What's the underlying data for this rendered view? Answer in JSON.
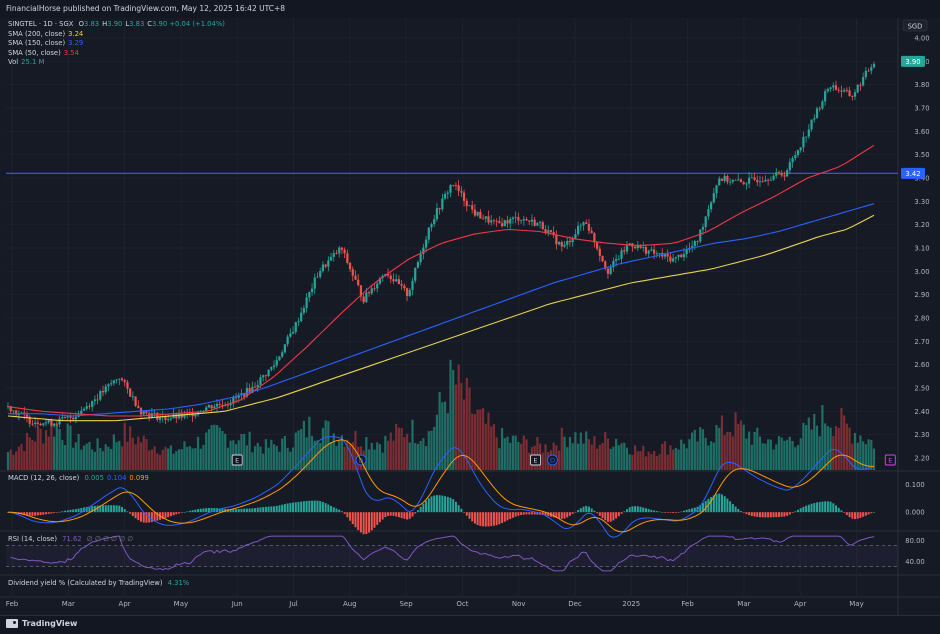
{
  "header": {
    "publish_line": "FinancialHorse published on TradingView.com, May 12, 2025 16:42 UTC+8"
  },
  "currency": "SGD",
  "main_legend": {
    "symbol": "SINGTEL · 1D · SGX",
    "ohlc": [
      {
        "k": "O",
        "v": "3.83"
      },
      {
        "k": "H",
        "v": "3.90"
      },
      {
        "k": "L",
        "v": "3.83"
      },
      {
        "k": "C",
        "v": "3.90"
      }
    ],
    "change": "+0.04 (+1.04%)",
    "indicators": [
      {
        "label": "SMA (200, close)",
        "value": "3.24",
        "color": "#e6d24c"
      },
      {
        "label": "SMA (150, close)",
        "value": "3.29",
        "color": "#2962ff"
      },
      {
        "label": "SMA (50, close)",
        "value": "3.54",
        "color": "#f23645"
      },
      {
        "label": "Vol",
        "value": "25.1 M",
        "color": "#26a69a"
      }
    ]
  },
  "macd_legend": {
    "label": "MACD (12, 26, close)",
    "values": [
      "0.005",
      "0.104",
      "0.099"
    ],
    "colors": [
      "#26a69a",
      "#2962ff",
      "#ff9800"
    ]
  },
  "rsi_legend": {
    "label": "RSI (14, close)",
    "value": "71.62",
    "extras": "∅ ∅ ∅ ∅ ∅ ∅"
  },
  "div_legend": {
    "label": "Dividend yield % (Calculated by TradingView)",
    "value": "4.31%"
  },
  "price_labels": {
    "last": "3.90",
    "level": "3.42"
  },
  "event_markers": [
    {
      "text": "E",
      "month_pos": 4.0,
      "color": "#d1d4dc"
    },
    {
      "text": "D",
      "month_pos": 6.2,
      "color": "#2962ff"
    },
    {
      "text": "E",
      "month_pos": 9.3,
      "color": "#d1d4dc"
    },
    {
      "text": "D",
      "month_pos": 9.6,
      "color": "#2962ff"
    },
    {
      "text": "E",
      "month_pos": 15.6,
      "color": "#e040fb"
    }
  ],
  "footer": {
    "brand": "TradingView"
  },
  "chart_data": {
    "type": "candlestick",
    "x_axis": {
      "labels": [
        "Feb",
        "Mar",
        "Apr",
        "May",
        "Jun",
        "Jul",
        "Aug",
        "Sep",
        "Oct",
        "Nov",
        "Dec",
        "2025",
        "Feb",
        "Mar",
        "Apr",
        "May"
      ]
    },
    "y_axis": {
      "ticks": [
        "4.00",
        "3.90",
        "3.80",
        "3.70",
        "3.60",
        "3.50",
        "3.40",
        "3.30",
        "3.20",
        "3.10",
        "3.00",
        "2.90",
        "2.80",
        "2.70",
        "2.60",
        "2.50",
        "2.40",
        "2.30",
        "2.20"
      ],
      "range": [
        2.2,
        4.0
      ]
    },
    "horizontal_line": 3.42,
    "price_closes": [
      2.42,
      2.36,
      2.35,
      2.38,
      2.46,
      2.55,
      2.4,
      2.37,
      2.38,
      2.42,
      2.44,
      2.5,
      2.6,
      2.78,
      3.0,
      3.1,
      2.88,
      3.0,
      2.9,
      3.2,
      3.38,
      3.25,
      3.2,
      3.23,
      3.2,
      3.1,
      3.22,
      3.0,
      3.12,
      3.08,
      3.05,
      3.12,
      3.4,
      3.38,
      3.4,
      3.42,
      3.6,
      3.8,
      3.75,
      3.9
    ],
    "price_high_low_range": [
      2.2,
      4.0
    ],
    "sma_200": [
      2.38,
      2.37,
      2.36,
      2.36,
      2.36,
      2.37,
      2.38,
      2.39,
      2.4,
      2.43,
      2.46,
      2.5,
      2.54,
      2.58,
      2.62,
      2.66,
      2.7,
      2.74,
      2.78,
      2.82,
      2.86,
      2.89,
      2.92,
      2.95,
      2.97,
      2.99,
      3.01,
      3.04,
      3.07,
      3.11,
      3.15,
      3.18,
      3.24
    ],
    "sma_150": [
      2.39,
      2.39,
      2.38,
      2.39,
      2.4,
      2.41,
      2.43,
      2.46,
      2.5,
      2.55,
      2.6,
      2.65,
      2.7,
      2.75,
      2.8,
      2.85,
      2.9,
      2.95,
      2.99,
      3.03,
      3.06,
      3.09,
      3.12,
      3.14,
      3.17,
      3.21,
      3.25,
      3.29
    ],
    "sma_50": [
      2.42,
      2.4,
      2.39,
      2.38,
      2.38,
      2.39,
      2.4,
      2.45,
      2.55,
      2.68,
      2.82,
      2.95,
      3.05,
      3.12,
      3.16,
      3.18,
      3.17,
      3.14,
      3.12,
      3.11,
      3.12,
      3.17,
      3.25,
      3.32,
      3.4,
      3.45,
      3.54
    ],
    "volume_axis_note": "volume bars at bottom of price pane",
    "volume": [
      0.2,
      0.35,
      0.5,
      0.3,
      0.25,
      0.4,
      0.3,
      0.2,
      0.3,
      0.4,
      0.35,
      0.25,
      0.3,
      0.5,
      0.4,
      0.35,
      0.3,
      0.45,
      0.4,
      1.0,
      0.6,
      0.35,
      0.3,
      0.25,
      0.4,
      0.3,
      0.35,
      0.2,
      0.25,
      0.3,
      0.4,
      0.5,
      0.35,
      0.3,
      0.4,
      0.6,
      0.45,
      0.3
    ],
    "macd": {
      "ticks": [
        "0.100",
        "0.000"
      ],
      "range": [
        -0.05,
        0.12
      ]
    },
    "rsi": {
      "ticks": [
        "80.00",
        "40.00"
      ],
      "range": [
        20,
        90
      ]
    }
  }
}
